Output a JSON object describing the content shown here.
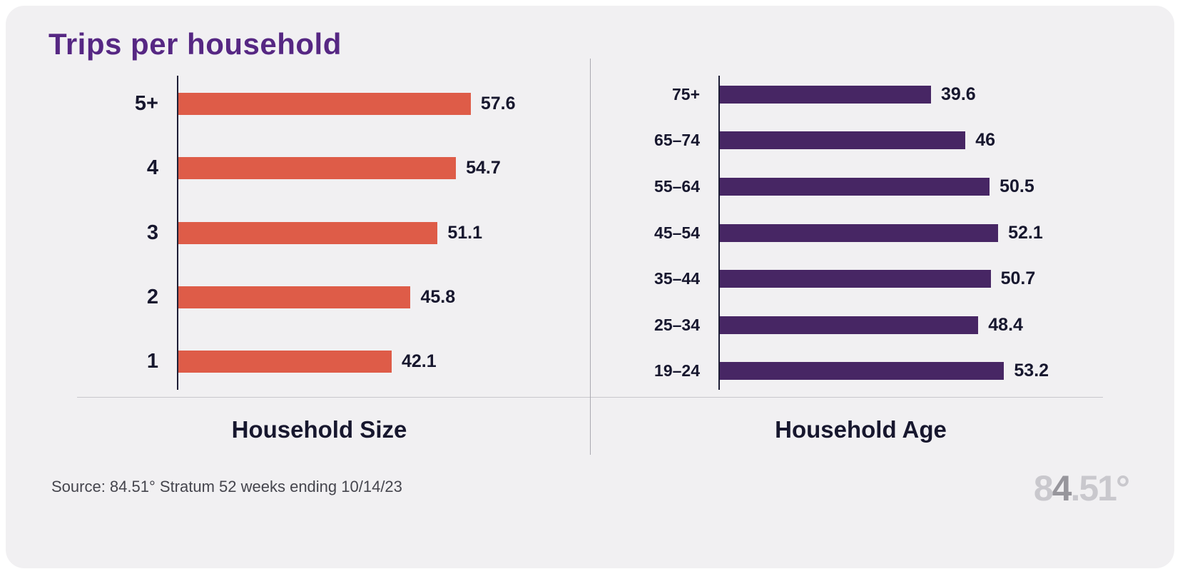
{
  "title": "Trips per household",
  "source": "Source: 84.51° Stratum 52 weeks ending 10/14/23",
  "logo": {
    "part1": "8",
    "part2": "4",
    "part3": ".51°"
  },
  "colors": {
    "title_purple": "#562783",
    "bar_orange": "#de5c48",
    "bar_purple": "#472664",
    "card_background": "#f1f0f2",
    "text_dark": "#17172e"
  },
  "chart_data": [
    {
      "type": "bar",
      "orientation": "horizontal",
      "title": "Household Size",
      "categories": [
        "5+",
        "4",
        "3",
        "2",
        "1"
      ],
      "values": [
        57.6,
        54.7,
        51.1,
        45.8,
        42.1
      ],
      "xlim": [
        0,
        60
      ],
      "bar_color": "#de5c48",
      "grid": false,
      "value_labels": "end-of-bar"
    },
    {
      "type": "bar",
      "orientation": "horizontal",
      "title": "Household Age",
      "categories": [
        "75+",
        "65–74",
        "55–64",
        "45–54",
        "35–44",
        "25–34",
        "19–24"
      ],
      "values": [
        39.6,
        46,
        50.5,
        52.1,
        50.7,
        48.4,
        53.2
      ],
      "xlim": [
        0,
        57
      ],
      "bar_color": "#472664",
      "grid": false,
      "value_labels": "end-of-bar"
    }
  ]
}
